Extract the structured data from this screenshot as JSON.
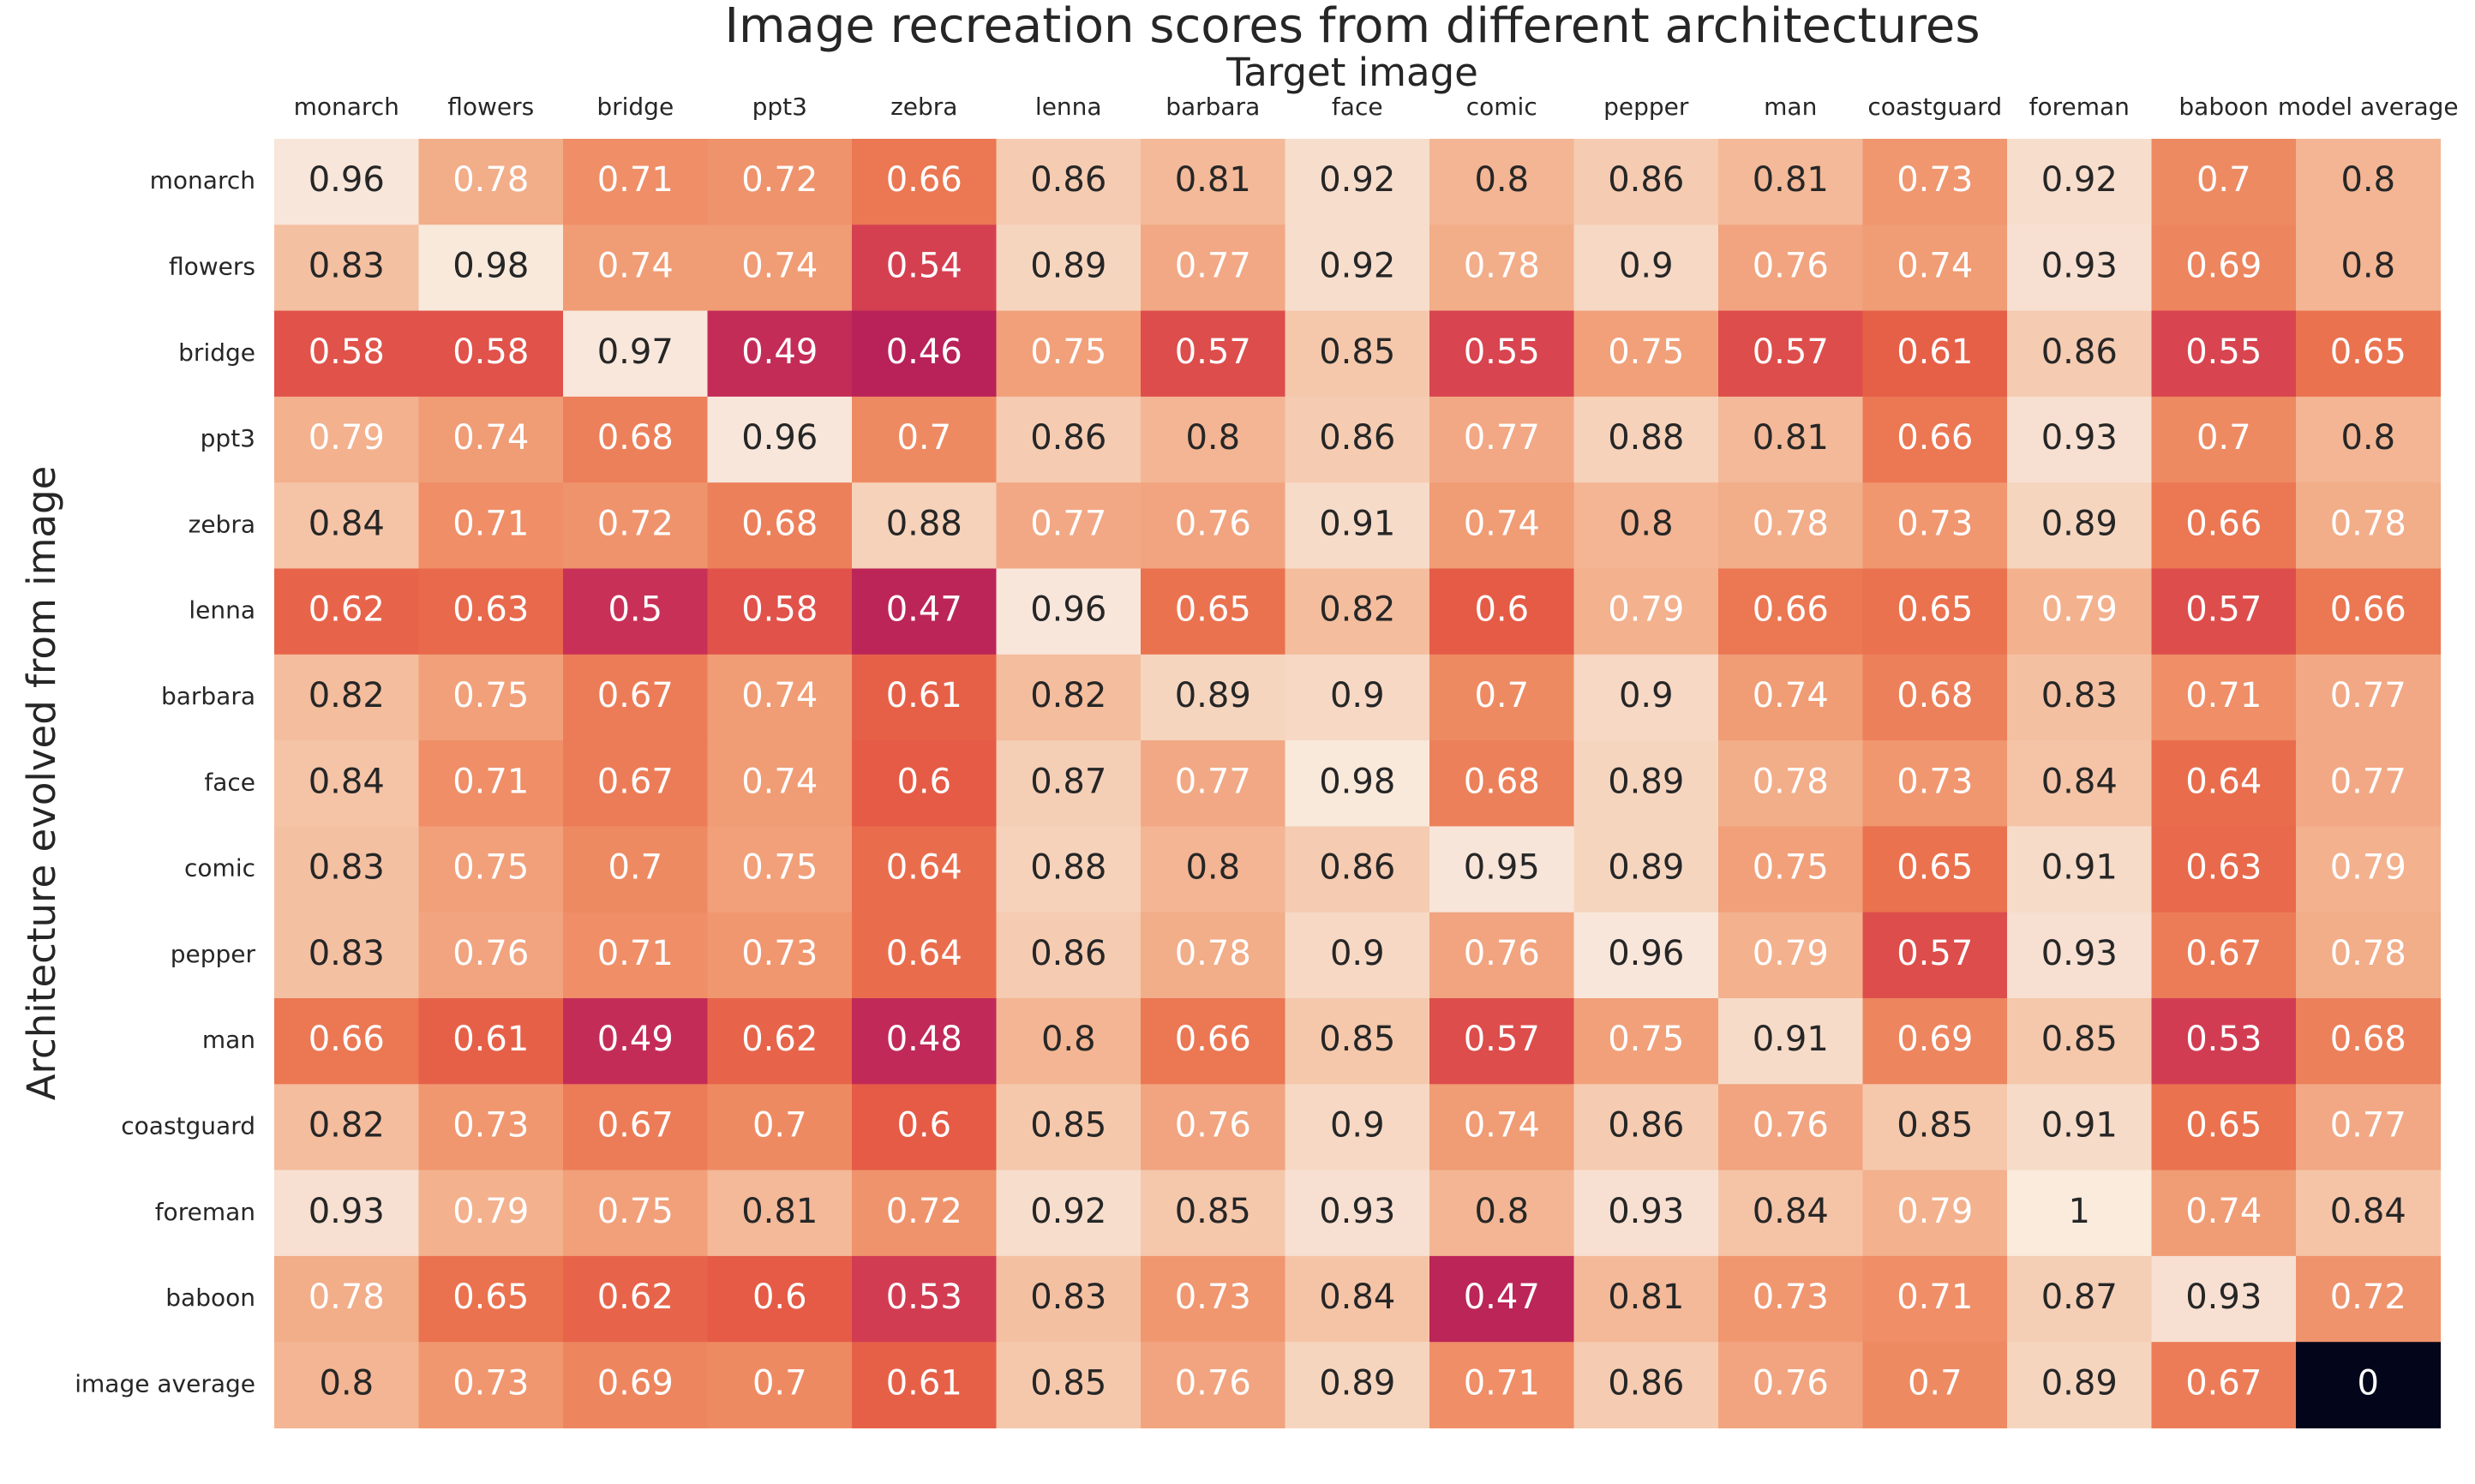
{
  "chart_data": {
    "type": "heatmap",
    "title": "Image recreation scores from different architectures",
    "xlabel": "Target image",
    "ylabel": "Architecture evolved from image",
    "x_categories": [
      "monarch",
      "flowers",
      "bridge",
      "ppt3",
      "zebra",
      "lenna",
      "barbara",
      "face",
      "comic",
      "pepper",
      "man",
      "coastguard",
      "foreman",
      "baboon",
      "model average"
    ],
    "y_categories": [
      "monarch",
      "flowers",
      "bridge",
      "ppt3",
      "zebra",
      "lenna",
      "barbara",
      "face",
      "comic",
      "pepper",
      "man",
      "coastguard",
      "foreman",
      "baboon",
      "image average"
    ],
    "values": [
      [
        0.96,
        0.78,
        0.71,
        0.72,
        0.66,
        0.86,
        0.81,
        0.92,
        0.8,
        0.86,
        0.81,
        0.73,
        0.92,
        0.7,
        0.8
      ],
      [
        0.83,
        0.98,
        0.74,
        0.74,
        0.54,
        0.89,
        0.77,
        0.92,
        0.78,
        0.9,
        0.76,
        0.74,
        0.93,
        0.69,
        0.8
      ],
      [
        0.58,
        0.58,
        0.97,
        0.49,
        0.46,
        0.75,
        0.57,
        0.85,
        0.55,
        0.75,
        0.57,
        0.61,
        0.86,
        0.55,
        0.65
      ],
      [
        0.79,
        0.74,
        0.68,
        0.96,
        0.7,
        0.86,
        0.8,
        0.86,
        0.77,
        0.88,
        0.81,
        0.66,
        0.93,
        0.7,
        0.8
      ],
      [
        0.84,
        0.71,
        0.72,
        0.68,
        0.88,
        0.77,
        0.76,
        0.91,
        0.74,
        0.8,
        0.78,
        0.73,
        0.89,
        0.66,
        0.78
      ],
      [
        0.62,
        0.63,
        0.5,
        0.58,
        0.47,
        0.96,
        0.65,
        0.82,
        0.6,
        0.79,
        0.66,
        0.65,
        0.79,
        0.57,
        0.66
      ],
      [
        0.82,
        0.75,
        0.67,
        0.74,
        0.61,
        0.82,
        0.89,
        0.9,
        0.7,
        0.9,
        0.74,
        0.68,
        0.83,
        0.71,
        0.77
      ],
      [
        0.84,
        0.71,
        0.67,
        0.74,
        0.6,
        0.87,
        0.77,
        0.98,
        0.68,
        0.89,
        0.78,
        0.73,
        0.84,
        0.64,
        0.77
      ],
      [
        0.83,
        0.75,
        0.7,
        0.75,
        0.64,
        0.88,
        0.8,
        0.86,
        0.95,
        0.89,
        0.75,
        0.65,
        0.91,
        0.63,
        0.79
      ],
      [
        0.83,
        0.76,
        0.71,
        0.73,
        0.64,
        0.86,
        0.78,
        0.9,
        0.76,
        0.96,
        0.79,
        0.57,
        0.93,
        0.67,
        0.78
      ],
      [
        0.66,
        0.61,
        0.49,
        0.62,
        0.48,
        0.8,
        0.66,
        0.85,
        0.57,
        0.75,
        0.91,
        0.69,
        0.85,
        0.53,
        0.68
      ],
      [
        0.82,
        0.73,
        0.67,
        0.7,
        0.6,
        0.85,
        0.76,
        0.9,
        0.74,
        0.86,
        0.76,
        0.85,
        0.91,
        0.65,
        0.77
      ],
      [
        0.93,
        0.79,
        0.75,
        0.81,
        0.72,
        0.92,
        0.85,
        0.93,
        0.8,
        0.93,
        0.84,
        0.79,
        1,
        0.74,
        0.84
      ],
      [
        0.78,
        0.65,
        0.62,
        0.6,
        0.53,
        0.83,
        0.73,
        0.84,
        0.47,
        0.81,
        0.73,
        0.71,
        0.87,
        0.93,
        0.72
      ],
      [
        0.8,
        0.73,
        0.69,
        0.7,
        0.61,
        0.85,
        0.76,
        0.89,
        0.71,
        0.86,
        0.76,
        0.7,
        0.89,
        0.67,
        0
      ]
    ],
    "colormap": "rocket",
    "x_label_position": "top",
    "grid": false,
    "legend": "none"
  }
}
